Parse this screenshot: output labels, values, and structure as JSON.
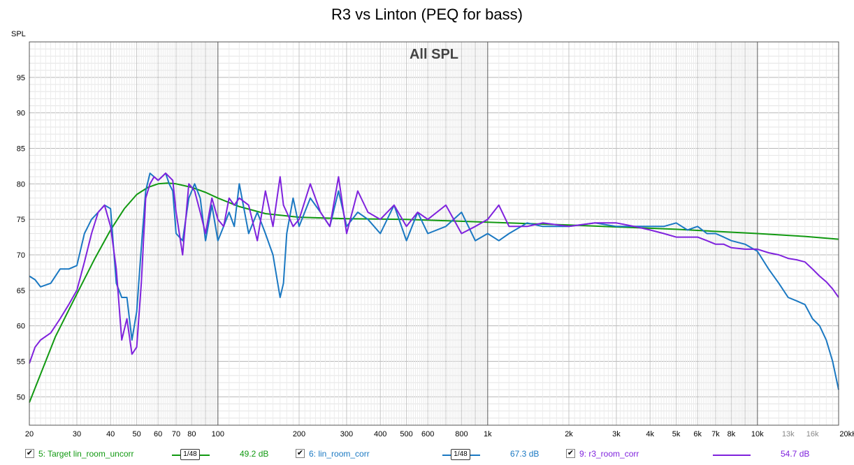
{
  "chart_data": {
    "type": "line",
    "title": "R3 vs Linton (PEQ for bass)",
    "subtitle": "All SPL",
    "ylabel": "SPL",
    "xlabel": "",
    "x_scale": "log",
    "xlim": [
      20,
      20000
    ],
    "ylim": [
      46,
      100
    ],
    "yticks": [
      50,
      55,
      60,
      65,
      70,
      75,
      80,
      85,
      90,
      95
    ],
    "xtick_labels": [
      {
        "v": 20,
        "t": "20"
      },
      {
        "v": 30,
        "t": "30"
      },
      {
        "v": 40,
        "t": "40"
      },
      {
        "v": 50,
        "t": "50"
      },
      {
        "v": 60,
        "t": "60"
      },
      {
        "v": 70,
        "t": "70"
      },
      {
        "v": 80,
        "t": "80"
      },
      {
        "v": 100,
        "t": "100"
      },
      {
        "v": 200,
        "t": "200"
      },
      {
        "v": 300,
        "t": "300"
      },
      {
        "v": 400,
        "t": "400"
      },
      {
        "v": 500,
        "t": "500"
      },
      {
        "v": 600,
        "t": "600"
      },
      {
        "v": 800,
        "t": "800"
      },
      {
        "v": 1000,
        "t": "1k"
      },
      {
        "v": 2000,
        "t": "2k"
      },
      {
        "v": 3000,
        "t": "3k"
      },
      {
        "v": 4000,
        "t": "4k"
      },
      {
        "v": 5000,
        "t": "5k"
      },
      {
        "v": 6000,
        "t": "6k"
      },
      {
        "v": 7000,
        "t": "7k"
      },
      {
        "v": 8000,
        "t": "8k"
      },
      {
        "v": 10000,
        "t": "10k"
      },
      {
        "v": 13000,
        "t": "13k"
      },
      {
        "v": 16000,
        "t": "16k"
      },
      {
        "v": 20000,
        "t": "20kHz"
      }
    ],
    "grid": true,
    "series": [
      {
        "name": "5: Target lin_room_uncorr",
        "color": "#119911",
        "x": [
          20,
          25,
          30,
          35,
          40,
          45,
          50,
          55,
          60,
          65,
          70,
          80,
          90,
          100,
          120,
          150,
          200,
          300,
          500,
          1000,
          2000,
          5000,
          10000,
          15000,
          20000
        ],
        "y": [
          49.2,
          58.5,
          64.5,
          69.5,
          73.5,
          76.5,
          78.5,
          79.5,
          80.0,
          80.1,
          80.0,
          79.5,
          78.8,
          78.0,
          76.8,
          75.8,
          75.3,
          75.1,
          75.0,
          74.6,
          74.2,
          73.6,
          73.0,
          72.6,
          72.2
        ]
      },
      {
        "name": "6: lin_room_corr",
        "color": "#1a78c2",
        "x": [
          20,
          21,
          22,
          24,
          26,
          28,
          30,
          32,
          34,
          36,
          38,
          40,
          42,
          44,
          46,
          48,
          50,
          52,
          54,
          56,
          58,
          60,
          62,
          64,
          66,
          68,
          70,
          74,
          78,
          82,
          86,
          90,
          95,
          100,
          105,
          110,
          115,
          120,
          130,
          140,
          150,
          160,
          170,
          175,
          180,
          190,
          200,
          220,
          240,
          260,
          280,
          300,
          330,
          360,
          400,
          450,
          500,
          550,
          600,
          700,
          800,
          900,
          1000,
          1100,
          1200,
          1400,
          1600,
          2000,
          2500,
          3000,
          3500,
          4000,
          4500,
          5000,
          5500,
          6000,
          6500,
          7000,
          7500,
          8000,
          9000,
          10000,
          11000,
          12000,
          13000,
          14000,
          15000,
          16000,
          17000,
          18000,
          19000,
          20000
        ],
        "y": [
          67,
          66.5,
          65.5,
          66,
          68,
          68,
          68.5,
          73,
          75,
          76,
          77,
          76.5,
          66,
          64,
          64,
          58,
          62,
          71,
          79,
          81.5,
          81,
          80.5,
          81,
          81.5,
          80,
          79,
          73,
          72,
          78,
          80,
          78,
          72,
          77,
          72,
          74,
          76,
          74,
          80,
          73,
          76,
          73,
          70,
          64,
          66,
          73,
          78,
          74,
          78,
          76,
          74,
          79,
          74,
          76,
          75,
          73,
          77,
          72,
          76,
          73,
          74,
          76,
          72,
          73,
          72,
          73,
          74.5,
          74,
          74,
          74.5,
          74,
          74,
          74,
          74,
          74.5,
          73.5,
          74,
          73,
          73,
          72.5,
          72,
          71.5,
          70.5,
          68,
          66,
          64,
          63.5,
          63,
          61,
          60,
          58,
          55,
          51
        ]
      },
      {
        "name": "9: r3_room_corr",
        "color": "#7f22dd",
        "x": [
          20,
          21,
          22,
          24,
          26,
          28,
          30,
          32,
          34,
          36,
          38,
          40,
          42,
          44,
          46,
          48,
          50,
          52,
          54,
          56,
          58,
          60,
          62,
          64,
          66,
          68,
          70,
          74,
          78,
          82,
          86,
          90,
          95,
          100,
          105,
          110,
          115,
          120,
          130,
          140,
          150,
          160,
          170,
          175,
          180,
          190,
          200,
          220,
          240,
          260,
          280,
          300,
          330,
          360,
          400,
          450,
          500,
          550,
          600,
          700,
          800,
          900,
          1000,
          1100,
          1200,
          1400,
          1600,
          2000,
          2500,
          3000,
          3500,
          4000,
          4500,
          5000,
          5500,
          6000,
          6500,
          7000,
          7500,
          8000,
          9000,
          10000,
          11000,
          12000,
          13000,
          14000,
          15000,
          16000,
          17000,
          18000,
          19000,
          20000
        ],
        "y": [
          54.7,
          57,
          58,
          59,
          61,
          63,
          65,
          69,
          73,
          76,
          77,
          74,
          68,
          58,
          61,
          56,
          57,
          66,
          78,
          80,
          81,
          80.5,
          81,
          81.5,
          81,
          80.5,
          76,
          70,
          80,
          79,
          76,
          73,
          78,
          75,
          74,
          78,
          77,
          78,
          77,
          72,
          79,
          74,
          81,
          77,
          76,
          74,
          75,
          80,
          76,
          74,
          81,
          73,
          79,
          76,
          75,
          77,
          74,
          76,
          75,
          77,
          73,
          74,
          75,
          77,
          74,
          74,
          74.5,
          74,
          74.5,
          74.5,
          74,
          73.5,
          73,
          72.5,
          72.5,
          72.5,
          72,
          71.5,
          71.5,
          71,
          70.8,
          70.8,
          70.3,
          70,
          69.5,
          69.3,
          69,
          68,
          67,
          66.2,
          65.2,
          64
        ]
      }
    ]
  },
  "legend": [
    {
      "label": "5: Target lin_room_uncorr",
      "smoothing": "1/48",
      "level": "49.2 dB",
      "checked": "✔"
    },
    {
      "label": "6: lin_room_corr",
      "smoothing": "1/48",
      "level": "67.3 dB",
      "checked": "✔"
    },
    {
      "label": "9: r3_room_corr",
      "smoothing": "",
      "level": "54.7 dB",
      "checked": "✔"
    }
  ]
}
